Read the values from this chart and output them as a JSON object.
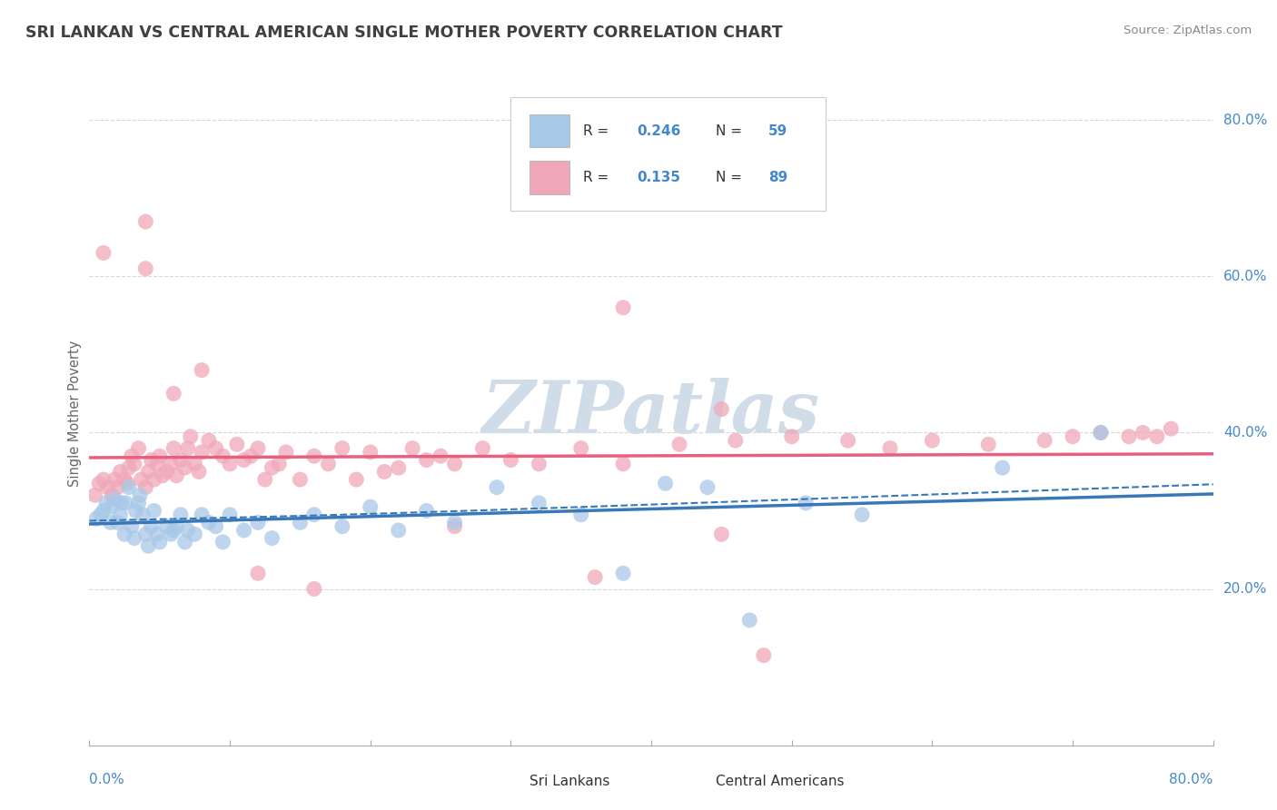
{
  "title": "SRI LANKAN VS CENTRAL AMERICAN SINGLE MOTHER POVERTY CORRELATION CHART",
  "source": "Source: ZipAtlas.com",
  "ylabel": "Single Mother Poverty",
  "ytick_labels": [
    "20.0%",
    "40.0%",
    "60.0%",
    "80.0%"
  ],
  "ytick_positions": [
    0.2,
    0.4,
    0.6,
    0.8
  ],
  "xtick_left": "0.0%",
  "xtick_right": "80.0%",
  "legend_label1": "Sri Lankans",
  "legend_label2": "Central Americans",
  "R1": "0.246",
  "N1": "59",
  "R2": "0.135",
  "N2": "89",
  "color_blue": "#a8c8e8",
  "color_pink": "#f0a8b8",
  "line_blue": "#3878b8",
  "line_pink": "#e86080",
  "background": "#ffffff",
  "grid_color": "#d8d8d8",
  "title_color": "#404040",
  "axis_label_color": "#4488cc",
  "watermark_color": "#d0dde8",
  "sri_lankans_x": [
    0.005,
    0.008,
    0.01,
    0.012,
    0.015,
    0.016,
    0.018,
    0.02,
    0.022,
    0.023,
    0.025,
    0.026,
    0.028,
    0.03,
    0.032,
    0.033,
    0.035,
    0.036,
    0.038,
    0.04,
    0.042,
    0.044,
    0.046,
    0.048,
    0.05,
    0.055,
    0.058,
    0.06,
    0.062,
    0.065,
    0.068,
    0.07,
    0.075,
    0.08,
    0.085,
    0.09,
    0.095,
    0.1,
    0.11,
    0.12,
    0.13,
    0.15,
    0.16,
    0.18,
    0.2,
    0.22,
    0.24,
    0.26,
    0.29,
    0.32,
    0.35,
    0.38,
    0.41,
    0.44,
    0.47,
    0.51,
    0.55,
    0.65,
    0.72
  ],
  "sri_lankans_y": [
    0.29,
    0.295,
    0.3,
    0.31,
    0.285,
    0.305,
    0.315,
    0.285,
    0.295,
    0.31,
    0.27,
    0.31,
    0.33,
    0.28,
    0.265,
    0.3,
    0.31,
    0.32,
    0.295,
    0.27,
    0.255,
    0.28,
    0.3,
    0.27,
    0.26,
    0.28,
    0.27,
    0.275,
    0.28,
    0.295,
    0.26,
    0.275,
    0.27,
    0.295,
    0.285,
    0.28,
    0.26,
    0.295,
    0.275,
    0.285,
    0.265,
    0.285,
    0.295,
    0.28,
    0.305,
    0.275,
    0.3,
    0.285,
    0.33,
    0.31,
    0.295,
    0.22,
    0.335,
    0.33,
    0.16,
    0.31,
    0.295,
    0.355,
    0.4
  ],
  "central_americans_x": [
    0.004,
    0.007,
    0.01,
    0.013,
    0.016,
    0.018,
    0.02,
    0.022,
    0.025,
    0.027,
    0.028,
    0.03,
    0.032,
    0.035,
    0.037,
    0.04,
    0.042,
    0.044,
    0.046,
    0.048,
    0.05,
    0.052,
    0.055,
    0.058,
    0.06,
    0.062,
    0.065,
    0.068,
    0.07,
    0.072,
    0.075,
    0.078,
    0.08,
    0.085,
    0.09,
    0.095,
    0.1,
    0.105,
    0.11,
    0.115,
    0.12,
    0.125,
    0.13,
    0.135,
    0.14,
    0.15,
    0.16,
    0.17,
    0.18,
    0.19,
    0.2,
    0.21,
    0.22,
    0.23,
    0.24,
    0.25,
    0.26,
    0.28,
    0.3,
    0.32,
    0.35,
    0.38,
    0.42,
    0.46,
    0.5,
    0.54,
    0.57,
    0.6,
    0.64,
    0.68,
    0.7,
    0.72,
    0.74,
    0.75,
    0.76,
    0.77,
    0.01,
    0.04,
    0.08,
    0.12,
    0.16,
    0.26,
    0.36,
    0.45,
    0.38,
    0.45,
    0.04,
    0.06,
    0.48
  ],
  "central_americans_y": [
    0.32,
    0.335,
    0.34,
    0.33,
    0.32,
    0.34,
    0.33,
    0.35,
    0.34,
    0.335,
    0.355,
    0.37,
    0.36,
    0.38,
    0.34,
    0.33,
    0.35,
    0.365,
    0.34,
    0.36,
    0.37,
    0.345,
    0.35,
    0.36,
    0.38,
    0.345,
    0.365,
    0.355,
    0.38,
    0.395,
    0.36,
    0.35,
    0.375,
    0.39,
    0.38,
    0.37,
    0.36,
    0.385,
    0.365,
    0.37,
    0.38,
    0.34,
    0.355,
    0.36,
    0.375,
    0.34,
    0.37,
    0.36,
    0.38,
    0.34,
    0.375,
    0.35,
    0.355,
    0.38,
    0.365,
    0.37,
    0.36,
    0.38,
    0.365,
    0.36,
    0.38,
    0.36,
    0.385,
    0.39,
    0.395,
    0.39,
    0.38,
    0.39,
    0.385,
    0.39,
    0.395,
    0.4,
    0.395,
    0.4,
    0.395,
    0.405,
    0.63,
    0.61,
    0.48,
    0.22,
    0.2,
    0.28,
    0.215,
    0.27,
    0.56,
    0.43,
    0.67,
    0.45,
    0.115
  ]
}
